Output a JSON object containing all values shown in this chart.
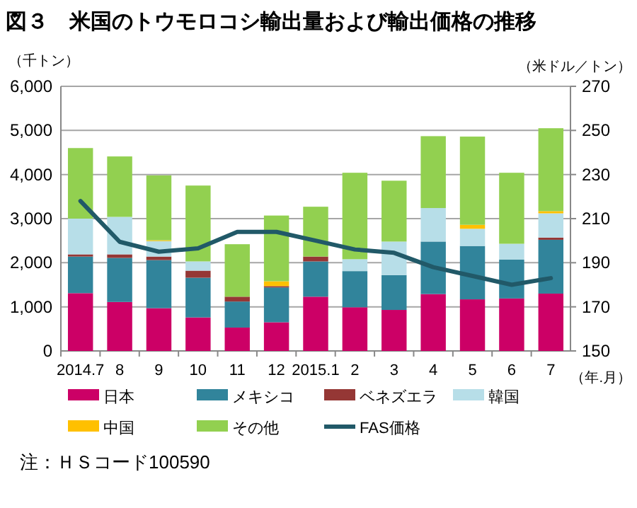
{
  "chart_data": {
    "type": "bar",
    "stacked": true,
    "title": "図３　米国のトウモロコシ輸出量および輸出価格の推移",
    "ylabel": "（千トン）",
    "y2label": "（米ドル／トン）",
    "xlabel": "（年.月）",
    "categories": [
      "2014.7",
      "8",
      "9",
      "10",
      "11",
      "12",
      "2015.1",
      "2",
      "3",
      "4",
      "5",
      "6",
      "7"
    ],
    "series": [
      {
        "name": "日本",
        "color": "#cc0066",
        "values": [
          1310,
          1110,
          970,
          760,
          530,
          650,
          1230,
          990,
          930,
          1290,
          1170,
          1190,
          1300
        ]
      },
      {
        "name": "メキシコ",
        "color": "#31849b",
        "values": [
          830,
          1000,
          1090,
          900,
          590,
          790,
          800,
          820,
          790,
          1190,
          1210,
          880,
          1220
        ]
      },
      {
        "name": "ベネズエラ",
        "color": "#953735",
        "values": [
          50,
          80,
          80,
          160,
          110,
          30,
          110,
          0,
          0,
          0,
          0,
          0,
          50
        ]
      },
      {
        "name": "韓国",
        "color": "#b7dee8",
        "values": [
          810,
          850,
          350,
          210,
          0,
          0,
          0,
          270,
          760,
          760,
          390,
          360,
          550
        ]
      },
      {
        "name": "中国",
        "color": "#ffc000",
        "values": [
          0,
          0,
          20,
          0,
          0,
          110,
          0,
          0,
          0,
          0,
          90,
          0,
          50
        ]
      },
      {
        "name": "その他",
        "color": "#92d050",
        "values": [
          1600,
          1370,
          1470,
          1720,
          1190,
          1490,
          1130,
          1960,
          1380,
          1630,
          2000,
          1610,
          1880
        ]
      },
      {
        "name": "FAS価格",
        "color": "#215968",
        "type": "line",
        "axis": "y2",
        "values": [
          218,
          199.5,
          195,
          196.5,
          204,
          204,
          200,
          196,
          194.5,
          188,
          184,
          180,
          183
        ]
      }
    ],
    "ylim": [
      0,
      6000
    ],
    "yticks": [
      {
        "value": 0,
        "label": "0"
      },
      {
        "value": 1000,
        "label": "1,000"
      },
      {
        "value": 2000,
        "label": "2,000"
      },
      {
        "value": 3000,
        "label": "3,000"
      },
      {
        "value": 4000,
        "label": "4,000"
      },
      {
        "value": 5000,
        "label": "5,000"
      },
      {
        "value": 6000,
        "label": "6,000"
      }
    ],
    "y2lim": [
      150,
      270
    ],
    "y2ticks": [
      150,
      170,
      190,
      210,
      230,
      250,
      270
    ],
    "grid": "y",
    "legend": "bottom",
    "marker": "none",
    "line_style": "solid",
    "annotations": [
      "注：ＨＳコード100590"
    ]
  }
}
